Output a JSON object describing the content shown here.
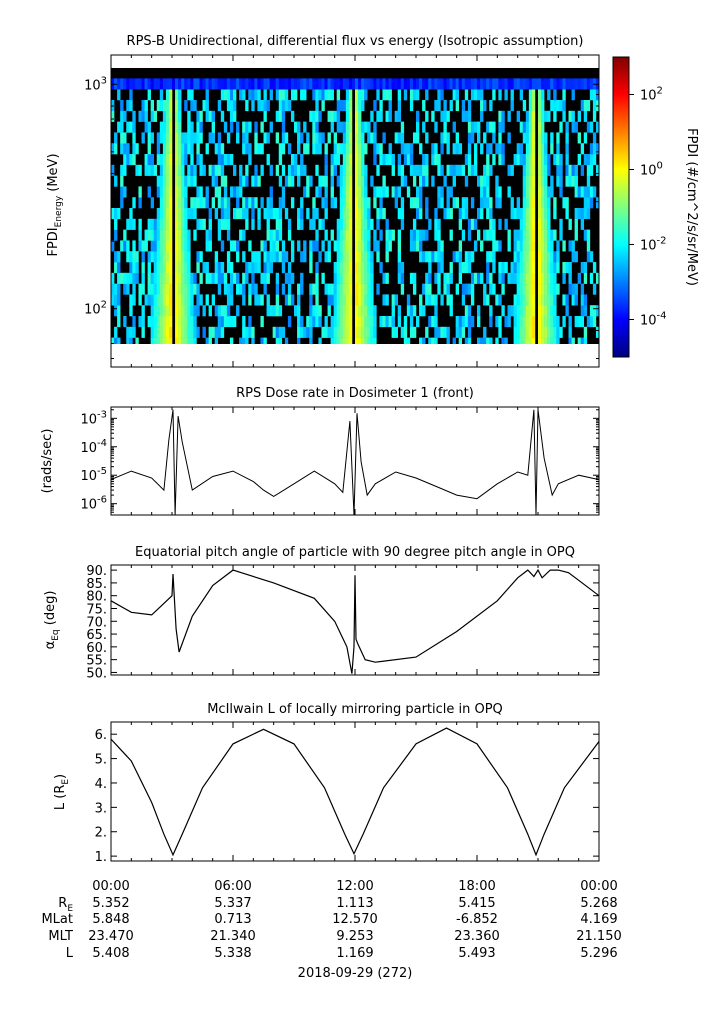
{
  "chart_data": [
    {
      "type": "heatmap",
      "title": "RPS-B  Unidirectional, differential flux vs energy (Isotropic assumption)",
      "ylabel": "FPDI",
      "ylabel_sub": "Energy",
      "ylabel_unit": " (MeV)",
      "yscale": "log",
      "ylim": [
        55,
        1350
      ],
      "yticks": [
        {
          "value": 100,
          "base": "10",
          "exp": "2"
        },
        {
          "value": 1000,
          "base": "10",
          "exp": "3"
        }
      ],
      "xlim_hours": [
        0,
        24
      ],
      "colorbar": {
        "label": "FPDI (#/cm^2/s/sr/MeV)",
        "scale": "log",
        "range": [
          1e-05,
          1000.0
        ],
        "ticks": [
          {
            "value": 100,
            "base": "10",
            "exp": "2"
          },
          {
            "value": 1,
            "base": "10",
            "exp": "0"
          },
          {
            "value": 0.01,
            "base": "10",
            "exp": "-2"
          },
          {
            "value": 0.0001,
            "base": "10",
            "exp": "-4"
          }
        ],
        "colors": [
          "#00007f",
          "#0000ff",
          "#007fff",
          "#00ffff",
          "#7fff7f",
          "#ffff00",
          "#ff7f00",
          "#ff0000",
          "#7f0000"
        ]
      },
      "features": {
        "belt_crossings_hours": [
          3.05,
          11.95,
          20.9
        ],
        "background": "sparse counts, black where no data"
      }
    },
    {
      "type": "line",
      "title": "RPS  Dose rate in Dosimeter 1 (front)",
      "ylabel": "(rads/sec)",
      "yscale": "log",
      "ylim": [
        4e-07,
        0.0025
      ],
      "yticks": [
        {
          "value": 1e-06,
          "base": "10",
          "exp": "-6"
        },
        {
          "value": 1e-05,
          "base": "10",
          "exp": "-5"
        },
        {
          "value": 0.0001,
          "base": "10",
          "exp": "-4"
        },
        {
          "value": 0.001,
          "base": "10",
          "exp": "-3"
        }
      ],
      "x_hours": [
        0,
        1,
        2,
        2.6,
        2.85,
        3.05,
        3.15,
        3.3,
        3.5,
        4.0,
        5,
        6,
        7,
        7.5,
        8,
        9,
        10,
        11,
        11.4,
        11.75,
        11.95,
        12.1,
        12.3,
        12.6,
        13,
        14,
        15,
        16,
        17,
        18,
        19,
        20,
        20.5,
        20.8,
        20.9,
        21.0,
        21.3,
        21.7,
        22,
        23,
        24
      ],
      "values": [
        7e-06,
        1.4e-05,
        8e-06,
        3e-06,
        0.00018,
        0.002,
        4e-07,
        0.0012,
        0.00015,
        3e-06,
        9e-06,
        1.4e-05,
        6e-06,
        3e-06,
        1.8e-06,
        5e-06,
        1.4e-05,
        5e-06,
        2.5e-06,
        0.0008,
        4e-07,
        0.0015,
        3e-05,
        2e-06,
        5e-06,
        1.3e-05,
        8e-06,
        4e-06,
        2e-06,
        1.5e-06,
        5e-06,
        1.3e-05,
        1e-05,
        0.002,
        4e-07,
        0.002,
        4e-05,
        2e-06,
        5e-06,
        1e-05,
        7e-06
      ]
    },
    {
      "type": "line",
      "title": "Equatorial pitch angle of particle with 90 degree pitch angle in OPQ",
      "ylabel": "α",
      "ylabel_sub": "Eq",
      "ylabel_unit": " (deg)",
      "ylim": [
        49,
        92
      ],
      "yticks": [
        "50.",
        "55.",
        "60.",
        "65.",
        "70.",
        "75.",
        "80.",
        "85.",
        "90."
      ],
      "x_hours": [
        0,
        1,
        2,
        2.6,
        3.0,
        3.05,
        3.2,
        3.35,
        4,
        5,
        6,
        8,
        10,
        11,
        11.6,
        11.85,
        11.95,
        12.0,
        12.05,
        12.15,
        12.5,
        13,
        15,
        17,
        19,
        20,
        20.5,
        20.8,
        21.0,
        21.2,
        21.6,
        22,
        22.5,
        23,
        24
      ],
      "values": [
        78,
        73.5,
        72.5,
        77,
        80,
        88.5,
        67,
        58,
        72,
        84,
        90,
        85,
        79,
        70,
        60,
        49.5,
        60,
        88,
        63,
        61,
        55,
        54,
        56,
        66,
        78,
        87,
        90,
        87.5,
        90,
        87,
        90,
        90,
        89,
        86,
        80
      ]
    },
    {
      "type": "line",
      "title": "McIlwain L of locally mirroring particle in OPQ",
      "ylabel": "L (R",
      "ylabel_sub": "E",
      "ylabel_unit": ")",
      "ylim": [
        0.8,
        6.5
      ],
      "yticks": [
        "1.",
        "2.",
        "3.",
        "4.",
        "5.",
        "6."
      ],
      "x_hours": [
        0,
        1,
        2,
        2.6,
        3.05,
        3.5,
        4.5,
        6,
        7.5,
        9,
        10.5,
        11.5,
        11.95,
        12.4,
        13.4,
        15,
        16.5,
        18,
        19.5,
        20.5,
        20.9,
        21.3,
        22.3,
        24
      ],
      "values": [
        5.8,
        4.9,
        3.2,
        1.9,
        1.05,
        1.9,
        3.8,
        5.6,
        6.2,
        5.6,
        3.8,
        1.9,
        1.1,
        1.9,
        3.8,
        5.6,
        6.25,
        5.6,
        3.8,
        1.9,
        1.05,
        1.9,
        3.8,
        5.7
      ]
    }
  ],
  "xaxis": {
    "tick_labels": [
      "00:00",
      "06:00",
      "12:00",
      "18:00",
      "00:00"
    ],
    "row_labels": [
      {
        "main": "R",
        "sub": "E"
      },
      {
        "main": "MLat",
        "sub": ""
      },
      {
        "main": "MLT",
        "sub": ""
      },
      {
        "main": "L",
        "sub": ""
      }
    ],
    "rows": [
      [
        "5.352",
        "5.337",
        "1.113",
        "5.415",
        "5.268"
      ],
      [
        "5.848",
        "0.713",
        "12.570",
        "-6.852",
        "4.169"
      ],
      [
        "23.470",
        "21.340",
        "9.253",
        "23.360",
        "21.150"
      ],
      [
        "5.408",
        "5.338",
        "1.169",
        "5.493",
        "5.296"
      ]
    ],
    "date": "2018-09-29 (272)"
  }
}
